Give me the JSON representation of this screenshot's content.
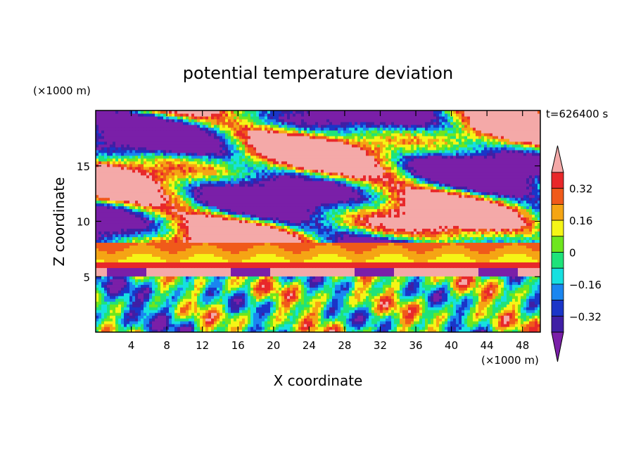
{
  "chart_data": {
    "type": "heatmap",
    "title": "potential temperature deviation",
    "xlabel": "X coordinate",
    "ylabel": "Z coordinate",
    "x_unit": "(×1000 m)",
    "y_unit": "(×1000 m)",
    "time_label": "t=626400 s",
    "xlim": [
      0,
      50
    ],
    "ylim": [
      0,
      20
    ],
    "x_ticks": [
      4,
      8,
      12,
      16,
      20,
      24,
      28,
      32,
      36,
      40,
      44,
      48
    ],
    "y_ticks": [
      5,
      10,
      15
    ],
    "colorbar": {
      "levels": [
        -0.4,
        -0.32,
        -0.24,
        -0.16,
        -0.08,
        0,
        0.08,
        0.16,
        0.24,
        0.32,
        0.4
      ],
      "tick_labels": [
        "0.32",
        "0.16",
        "0",
        "−0.16",
        "−0.32"
      ],
      "tick_values": [
        0.32,
        0.16,
        0,
        -0.16,
        -0.32
      ],
      "colors": [
        "#7a1fa8",
        "#3f1fa5",
        "#1a35c8",
        "#1a86f0",
        "#16e0e0",
        "#1ee37a",
        "#6ee61e",
        "#f5f516",
        "#f5a514",
        "#f05a1a",
        "#e8282a",
        "#f4a9a8"
      ],
      "extend": "both"
    },
    "colors": {
      "under": "#7a1fa8",
      "over": "#f4a9a8",
      "band": "#e8282a"
    }
  }
}
